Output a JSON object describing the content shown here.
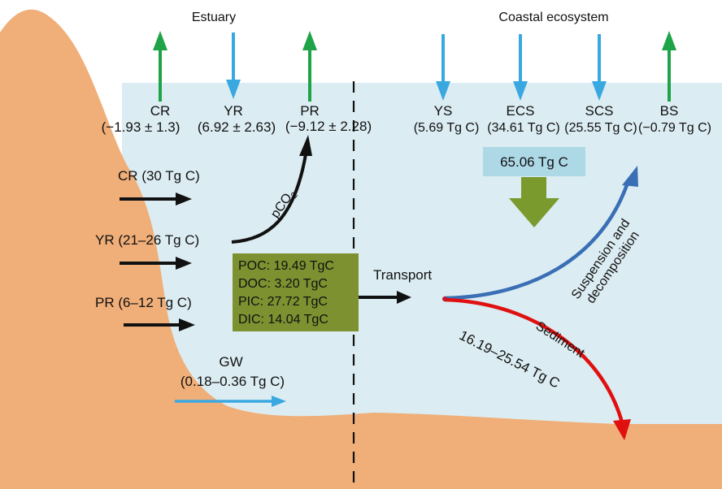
{
  "headings": {
    "estuary": "Estuary",
    "coastal": "Coastal ecosystem"
  },
  "rivers": [
    {
      "code": "CR",
      "value": "(−1.93 ± 1.3)",
      "direction": "up"
    },
    {
      "code": "YR",
      "value": "(6.92 ± 2.63)",
      "direction": "down"
    },
    {
      "code": "PR",
      "value": "(−9.12 ± 2.28)",
      "direction": "up"
    }
  ],
  "seas": [
    {
      "code": "YS",
      "value": "(5.69 Tg C)",
      "direction": "down"
    },
    {
      "code": "ECS",
      "value": "(34.61 Tg C)",
      "direction": "down"
    },
    {
      "code": "SCS",
      "value": "(25.55 Tg C)",
      "direction": "down"
    },
    {
      "code": "BS",
      "value": "(−0.79 Tg C)",
      "direction": "up"
    }
  ],
  "inputs": [
    {
      "label": "CR (30 Tg C)"
    },
    {
      "label": "YR (21–26 Tg C)"
    },
    {
      "label": "PR (6–12 Tg C)"
    }
  ],
  "pco2": {
    "base": "pCO",
    "sub": "2"
  },
  "budget_box": [
    "POC: 19.49 TgC",
    "DOC: 3.20 TgC",
    "PIC: 27.72 TgC",
    "DIC: 14.04 TgC"
  ],
  "transport": "Transport",
  "total": "65.06 Tg C",
  "groundwater": {
    "label": "GW",
    "value": "(0.18–0.36 Tg C)"
  },
  "fate": {
    "suspension_line1": "Suspension and",
    "suspension_line2": "decomposition",
    "sediment": "Sediment",
    "sediment_value": "16.19–25.54 Tg C"
  },
  "colors": {
    "land": "#f0ae78",
    "water": "#dbecf2",
    "efflux_arrow": "#1fa347",
    "influx_arrow": "#3aa8e0",
    "budget_box": "#7d9130",
    "total_box": "#add8e6",
    "down_arrow": "#7a9a2e",
    "suspension_arrow": "#3a6fb5",
    "sediment_arrow": "#e01010"
  }
}
